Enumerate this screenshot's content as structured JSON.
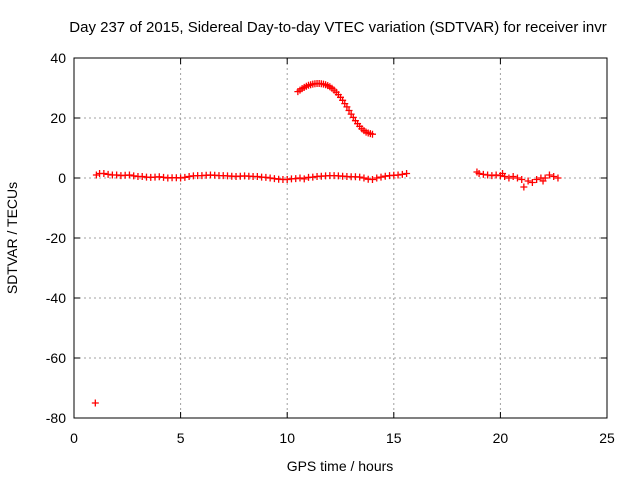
{
  "chart_data": {
    "type": "scatter",
    "title": "Day 237 of 2015, Sidereal Day-to-day VTEC variation (SDTVAR) for receiver invr",
    "xlabel": "GPS time / hours",
    "ylabel": "SDTVAR / TECUs",
    "xlim": [
      0,
      25
    ],
    "ylim": [
      -80,
      40
    ],
    "xticks": [
      "0",
      "5",
      "10",
      "15",
      "20",
      "25"
    ],
    "yticks": [
      "-80",
      "-60",
      "-40",
      "-20",
      "0",
      "20",
      "40"
    ],
    "grid": true,
    "marker": "+",
    "series": [
      {
        "name": "SDTVAR",
        "color": "#ff0000",
        "x": [
          1.05,
          1.2,
          1.4,
          1.6,
          1.8,
          2.0,
          2.2,
          2.4,
          2.6,
          2.8,
          3.0,
          3.2,
          3.4,
          3.6,
          3.8,
          4.0,
          4.2,
          4.4,
          4.6,
          4.8,
          5.0,
          5.2,
          5.4,
          5.6,
          5.8,
          6.0,
          6.2,
          6.4,
          6.6,
          6.8,
          7.0,
          7.2,
          7.4,
          7.6,
          7.8,
          8.0,
          8.2,
          8.4,
          8.6,
          8.8,
          9.0,
          9.2,
          9.4,
          9.6,
          9.8,
          10.0,
          10.2,
          10.4,
          10.6,
          10.8,
          11.0,
          11.2,
          11.4,
          11.6,
          11.8,
          12.0,
          12.2,
          12.4,
          12.6,
          12.8,
          13.0,
          13.2,
          13.4,
          13.6,
          13.8,
          14.0,
          14.2,
          14.4,
          14.6,
          14.8,
          15.0,
          15.2,
          15.4,
          15.6,
          10.5,
          10.6,
          10.7,
          10.8,
          10.9,
          11.0,
          11.1,
          11.2,
          11.3,
          11.4,
          11.5,
          11.6,
          11.7,
          11.8,
          11.9,
          12.0,
          12.1,
          12.2,
          12.3,
          12.4,
          12.5,
          12.6,
          12.7,
          12.8,
          12.9,
          13.0,
          13.1,
          13.2,
          13.3,
          13.4,
          13.5,
          13.6,
          13.7,
          13.8,
          13.9,
          14.0,
          18.9,
          19.0,
          19.2,
          19.4,
          19.6,
          19.8,
          20.0,
          20.1,
          20.2,
          20.4,
          20.6,
          20.8,
          21.0,
          21.1,
          21.3,
          21.5,
          21.7,
          21.9,
          22.0,
          22.1,
          22.3,
          22.5,
          22.7,
          1.0
        ],
        "y": [
          1.0,
          1.5,
          1.5,
          1.2,
          1.0,
          1.0,
          0.8,
          0.9,
          1.0,
          0.7,
          0.5,
          0.5,
          0.3,
          0.2,
          0.3,
          0.4,
          0.2,
          0.0,
          0.1,
          0.1,
          0.0,
          0.2,
          0.5,
          0.7,
          0.8,
          0.8,
          0.9,
          1.0,
          0.9,
          0.8,
          0.8,
          0.7,
          0.6,
          0.5,
          0.6,
          0.7,
          0.6,
          0.5,
          0.5,
          0.3,
          0.2,
          0.0,
          -0.2,
          -0.4,
          -0.5,
          -0.5,
          -0.3,
          -0.2,
          0.0,
          -0.3,
          0.2,
          0.3,
          0.5,
          0.6,
          0.7,
          0.8,
          0.8,
          0.7,
          0.6,
          0.5,
          0.4,
          0.4,
          0.3,
          0.0,
          -0.4,
          -0.5,
          0.0,
          0.3,
          0.6,
          0.8,
          0.9,
          1.0,
          1.2,
          1.5,
          28.8,
          29.3,
          29.8,
          30.2,
          30.6,
          30.9,
          31.1,
          31.3,
          31.4,
          31.5,
          31.5,
          31.4,
          31.3,
          31.1,
          30.8,
          30.4,
          29.9,
          29.3,
          28.6,
          27.8,
          26.9,
          25.9,
          24.8,
          23.7,
          22.5,
          21.3,
          20.2,
          19.1,
          18.1,
          17.2,
          16.4,
          15.8,
          15.3,
          15.0,
          14.8,
          14.6,
          2.0,
          1.5,
          1.2,
          1.0,
          0.8,
          1.0,
          0.8,
          1.5,
          0.5,
          0.0,
          0.5,
          0.0,
          -0.5,
          -3.0,
          -1.0,
          -1.5,
          -0.5,
          0.0,
          -1.0,
          0.0,
          1.0,
          0.5,
          0.0,
          -75.0
        ]
      }
    ]
  }
}
